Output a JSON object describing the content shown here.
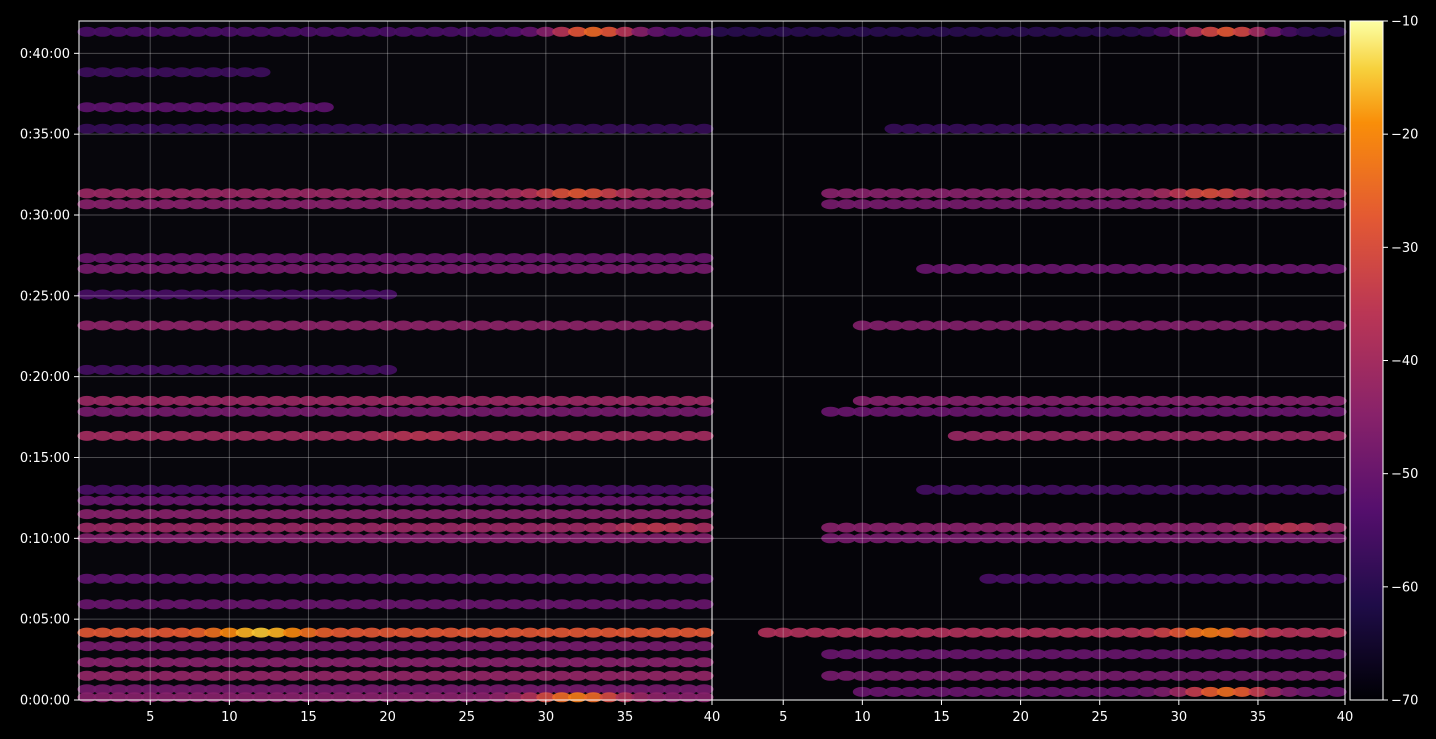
{
  "chart_data": {
    "type": "heatmap",
    "title": "",
    "xlabel": "",
    "ylabel": "",
    "y_ticks": [
      "0:00:00",
      "0:05:00",
      "0:10:00",
      "0:15:00",
      "0:20:00",
      "0:25:00",
      "0:30:00",
      "0:35:00",
      "0:40:00"
    ],
    "y_range_seconds": [
      0,
      2520
    ],
    "colormap": "inferno",
    "colorbar": {
      "ticks": [
        -10,
        -20,
        -30,
        -40,
        -50,
        -60,
        -70
      ],
      "range": [
        -70,
        -10
      ]
    },
    "grid": true,
    "panels": [
      {
        "x_ticks": [
          "5",
          "10",
          "15",
          "20",
          "25",
          "30",
          "35",
          "40"
        ],
        "x_range": [
          1,
          40
        ],
        "bands": [
          {
            "t": 2480,
            "x": [
              1,
              40
            ],
            "level": -55,
            "peak_x": 33,
            "peak_level": -25
          },
          {
            "t": 2330,
            "x": [
              1,
              12
            ],
            "level": -57
          },
          {
            "t": 2200,
            "x": [
              1,
              16
            ],
            "level": -52
          },
          {
            "t": 2120,
            "x": [
              1,
              40
            ],
            "level": -58
          },
          {
            "t": 1880,
            "x": [
              1,
              40
            ],
            "level": -42,
            "peak_x": 32,
            "peak_level": -28
          },
          {
            "t": 1840,
            "x": [
              1,
              40
            ],
            "level": -45
          },
          {
            "t": 1640,
            "x": [
              1,
              40
            ],
            "level": -50
          },
          {
            "t": 1600,
            "x": [
              1,
              40
            ],
            "level": -48
          },
          {
            "t": 1505,
            "x": [
              1,
              20
            ],
            "level": -55
          },
          {
            "t": 1390,
            "x": [
              1,
              40
            ],
            "level": -44
          },
          {
            "t": 1225,
            "x": [
              1,
              20
            ],
            "level": -56
          },
          {
            "t": 1110,
            "x": [
              1,
              40
            ],
            "level": -42
          },
          {
            "t": 1070,
            "x": [
              1,
              40
            ],
            "level": -48
          },
          {
            "t": 980,
            "x": [
              1,
              40
            ],
            "level": -40,
            "peak_x": 22,
            "peak_level": -36
          },
          {
            "t": 780,
            "x": [
              1,
              40
            ],
            "level": -55
          },
          {
            "t": 740,
            "x": [
              1,
              40
            ],
            "level": -50
          },
          {
            "t": 690,
            "x": [
              1,
              40
            ],
            "level": -45
          },
          {
            "t": 640,
            "x": [
              1,
              40
            ],
            "level": -42,
            "peak_x": 37,
            "peak_level": -35
          },
          {
            "t": 600,
            "x": [
              1,
              40
            ],
            "level": -46
          },
          {
            "t": 450,
            "x": [
              1,
              40
            ],
            "level": -52
          },
          {
            "t": 355,
            "x": [
              1,
              40
            ],
            "level": -50
          },
          {
            "t": 250,
            "x": [
              1,
              40
            ],
            "level": -28,
            "peak_x": 12,
            "peak_level": -15
          },
          {
            "t": 200,
            "x": [
              1,
              40
            ],
            "level": -48
          },
          {
            "t": 140,
            "x": [
              1,
              40
            ],
            "level": -45
          },
          {
            "t": 90,
            "x": [
              1,
              40
            ],
            "level": -43
          },
          {
            "t": 40,
            "x": [
              1,
              40
            ],
            "level": -48
          },
          {
            "t": 10,
            "x": [
              1,
              40
            ],
            "level": -45,
            "peak_x": 32,
            "peak_level": -22
          }
        ]
      },
      {
        "x_ticks": [
          "40",
          "5",
          "10",
          "15",
          "20",
          "25",
          "30",
          "35",
          "40"
        ],
        "x_range": [
          1,
          40
        ],
        "bands": [
          {
            "t": 2480,
            "x": [
              1,
              40
            ],
            "level": -60,
            "peak_x": 33,
            "peak_level": -28
          },
          {
            "t": 2120,
            "x": [
              12,
              40
            ],
            "level": -58
          },
          {
            "t": 1880,
            "x": [
              8,
              40
            ],
            "level": -45,
            "peak_x": 32,
            "peak_level": -30
          },
          {
            "t": 1840,
            "x": [
              8,
              40
            ],
            "level": -48
          },
          {
            "t": 1600,
            "x": [
              14,
              40
            ],
            "level": -50
          },
          {
            "t": 1390,
            "x": [
              10,
              40
            ],
            "level": -46
          },
          {
            "t": 1110,
            "x": [
              10,
              40
            ],
            "level": -46
          },
          {
            "t": 1070,
            "x": [
              8,
              40
            ],
            "level": -50
          },
          {
            "t": 980,
            "x": [
              16,
              40
            ],
            "level": -42
          },
          {
            "t": 780,
            "x": [
              14,
              40
            ],
            "level": -56
          },
          {
            "t": 640,
            "x": [
              8,
              40
            ],
            "level": -45,
            "peak_x": 37,
            "peak_level": -36
          },
          {
            "t": 600,
            "x": [
              8,
              40
            ],
            "level": -48
          },
          {
            "t": 450,
            "x": [
              18,
              40
            ],
            "level": -55
          },
          {
            "t": 250,
            "x": [
              4,
              40
            ],
            "level": -38,
            "peak_x": 32,
            "peak_level": -22
          },
          {
            "t": 170,
            "x": [
              8,
              40
            ],
            "level": -50
          },
          {
            "t": 90,
            "x": [
              8,
              40
            ],
            "level": -48
          },
          {
            "t": 30,
            "x": [
              10,
              40
            ],
            "level": -50,
            "peak_x": 33,
            "peak_level": -24
          }
        ]
      }
    ]
  }
}
